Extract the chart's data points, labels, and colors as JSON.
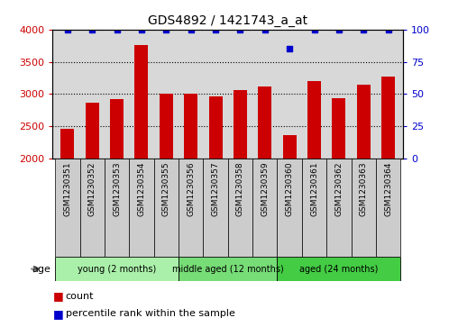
{
  "title": "GDS4892 / 1421743_a_at",
  "samples": [
    "GSM1230351",
    "GSM1230352",
    "GSM1230353",
    "GSM1230354",
    "GSM1230355",
    "GSM1230356",
    "GSM1230357",
    "GSM1230358",
    "GSM1230359",
    "GSM1230360",
    "GSM1230361",
    "GSM1230362",
    "GSM1230363",
    "GSM1230364"
  ],
  "counts": [
    2460,
    2870,
    2920,
    3760,
    3000,
    3000,
    2960,
    3060,
    3110,
    2360,
    3200,
    2940,
    3140,
    3270
  ],
  "percentile_ranks": [
    100,
    100,
    100,
    100,
    100,
    100,
    100,
    100,
    100,
    85,
    100,
    100,
    100,
    100
  ],
  "bar_color": "#cc0000",
  "dot_color": "#0000cc",
  "ylim_left": [
    2000,
    4000
  ],
  "ylim_right": [
    0,
    100
  ],
  "yticks_left": [
    2000,
    2500,
    3000,
    3500,
    4000
  ],
  "yticks_right": [
    0,
    25,
    50,
    75,
    100
  ],
  "groups": [
    {
      "label": "young (2 months)",
      "start": 0,
      "end": 5,
      "color": "#aaf0aa"
    },
    {
      "label": "middle aged (12 months)",
      "start": 5,
      "end": 9,
      "color": "#77dd77"
    },
    {
      "label": "aged (24 months)",
      "start": 9,
      "end": 14,
      "color": "#44cc44"
    }
  ],
  "age_label": "age",
  "legend_count_label": "count",
  "legend_percentile_label": "percentile rank within the sample",
  "background_color": "#ffffff",
  "plot_bg_color": "#d8d8d8",
  "title_fontsize": 10,
  "axis_label_color_left": "#cc0000",
  "axis_label_color_right": "#0000cc",
  "label_box_color": "#cccccc",
  "bar_width": 0.55
}
